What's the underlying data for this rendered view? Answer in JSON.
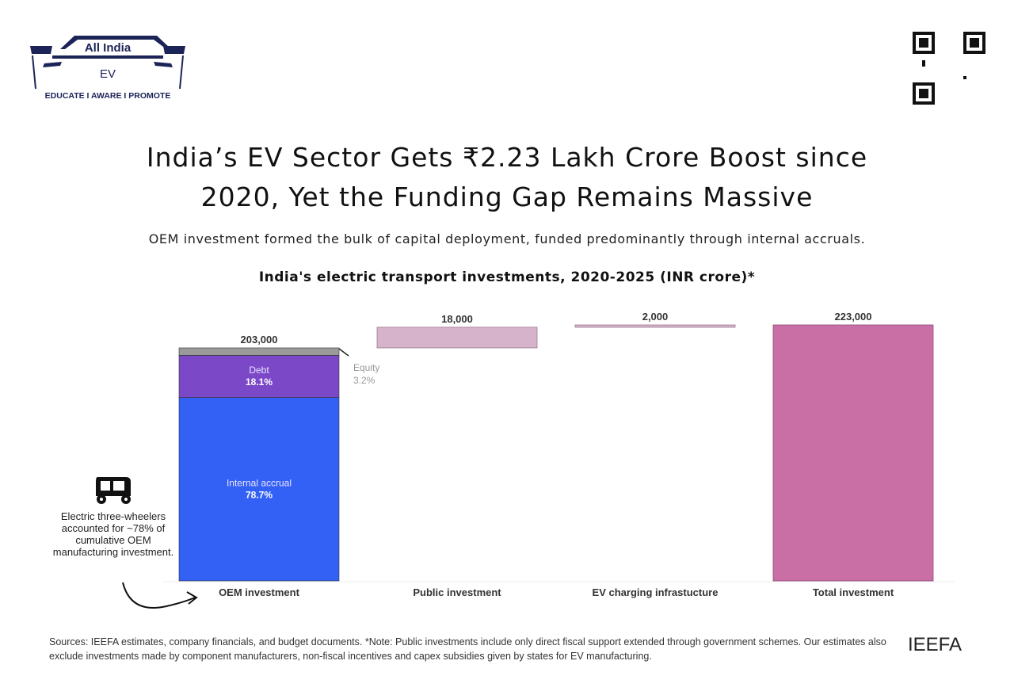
{
  "logo": {
    "line1": "All India",
    "line2": "EV",
    "tagline": "EDUCATE I AWARE I PROMOTE",
    "color": "#1b2357"
  },
  "header": {
    "title_line1": "India’s EV Sector Gets ₹2.23 Lakh Crore Boost since",
    "title_line2": "2020, Yet the Funding Gap Remains Massive",
    "subtitle": "OEM investment formed the bulk of capital deployment, funded predominantly through internal accruals."
  },
  "chart_data": {
    "type": "bar",
    "subtype": "waterfall",
    "title": "India's electric transport investments, 2020-2025 (INR crore)*",
    "categories": [
      "OEM investment",
      "Public investment",
      "EV charging infrastucture",
      "Total investment"
    ],
    "values": [
      203000,
      18000,
      2000,
      223000
    ],
    "value_labels": [
      "203,000",
      "18,000",
      "2,000",
      "223,000"
    ],
    "oem_breakdown": [
      {
        "name": "Internal accrual",
        "share_label": "78.7%",
        "share": 78.7,
        "color": "#3461f5"
      },
      {
        "name": "Debt",
        "share_label": "18.1%",
        "share": 18.1,
        "color": "#7b48c8"
      },
      {
        "name": "Equity",
        "share_label": "3.2%",
        "share": 3.2,
        "color": "#9a9a9a"
      }
    ],
    "colors": {
      "increment": "#d7b2cb",
      "total": "#c96fa6"
    },
    "ylim": [
      0,
      223000
    ],
    "grid": false,
    "annotation": "Electric three-wheelers accounted for ~78% of cumulative OEM manufacturing investment."
  },
  "footer": {
    "sources": "Sources: IEEFA estimates, company financials, and budget documents. *Note: Public investments include only direct fiscal support extended through government schemes. Our estimates also exclude investments made by component manufacturers, non-fiscal incentives and capex subsidies given by states for EV manufacturing.",
    "brand": "IEEFA"
  },
  "icons": {
    "logo": "car-outline-logo",
    "qr": "qr-code",
    "note": "auto-rickshaw-icon",
    "arrow": "curved-arrow-icon"
  }
}
